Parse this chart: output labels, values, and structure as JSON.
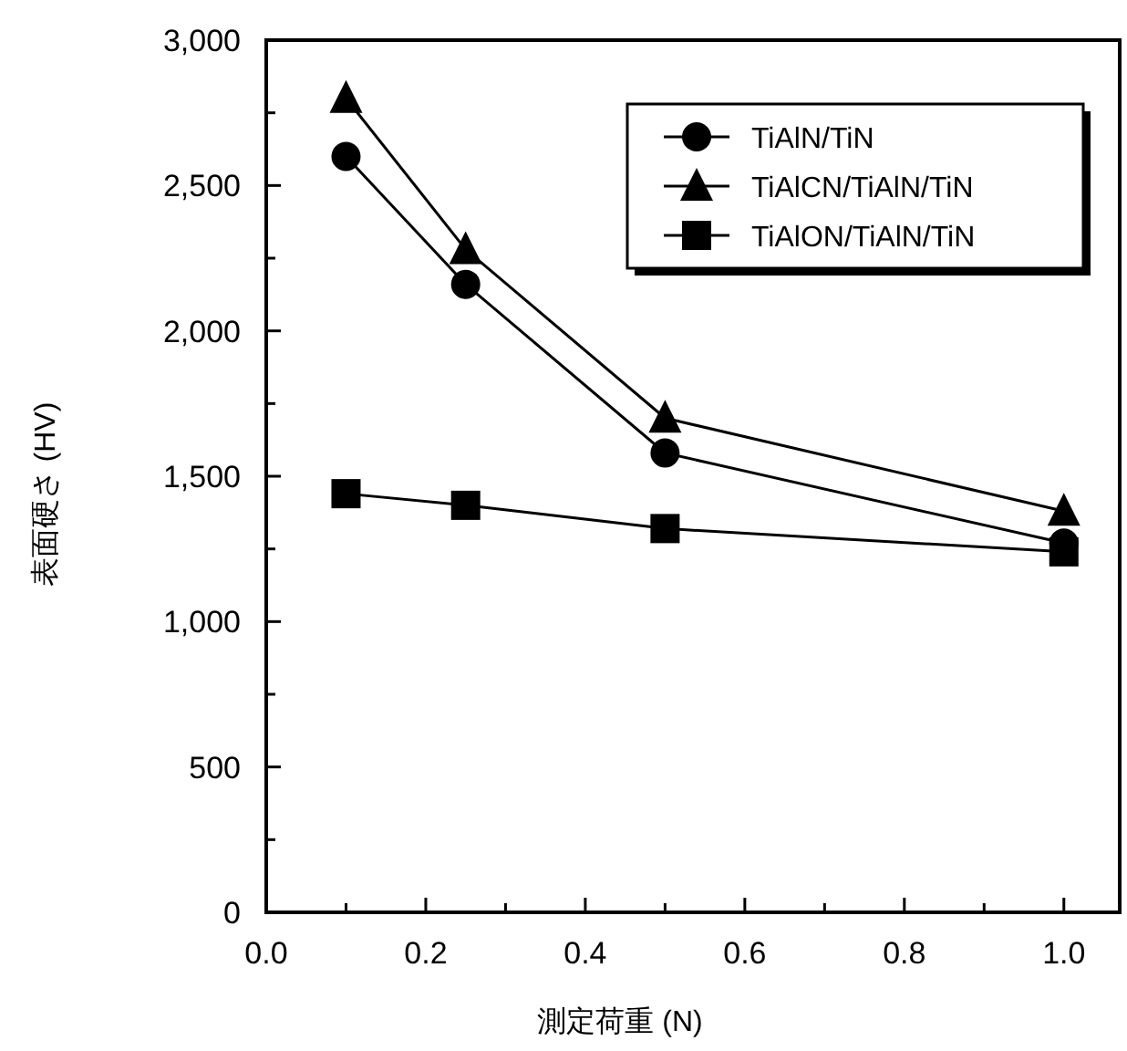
{
  "chart_data": {
    "type": "line",
    "xlabel": "測定荷重 (N)",
    "ylabel": "表面硬さ (HV)",
    "xlim": [
      0,
      1.07
    ],
    "ylim": [
      0,
      3000
    ],
    "xticks": [
      {
        "value": 0,
        "label": "0.0"
      },
      {
        "value": 0.1,
        "label": null
      },
      {
        "value": 0.2,
        "label": "0.2"
      },
      {
        "value": 0.3,
        "label": null
      },
      {
        "value": 0.4,
        "label": "0.4"
      },
      {
        "value": 0.5,
        "label": null
      },
      {
        "value": 0.6,
        "label": "0.6"
      },
      {
        "value": 0.7,
        "label": null
      },
      {
        "value": 0.8,
        "label": "0.8"
      },
      {
        "value": 0.9,
        "label": null
      },
      {
        "value": 1,
        "label": "1.0"
      }
    ],
    "yticks": [
      0,
      {
        "value": 250,
        "label": null
      },
      500,
      {
        "value": 750,
        "label": null
      },
      {
        "value": 1000,
        "label": "1,000"
      },
      {
        "value": 1250,
        "label": null
      },
      {
        "value": 1500,
        "label": "1,500"
      },
      {
        "value": 1750,
        "label": null
      },
      {
        "value": 2000,
        "label": "2,000"
      },
      {
        "value": 2250,
        "label": null
      },
      {
        "value": 2500,
        "label": "2,500"
      },
      {
        "value": 2750,
        "label": null
      },
      {
        "value": 3000,
        "label": "3,000"
      }
    ],
    "x": [
      0.1,
      0.25,
      0.5,
      1.0
    ],
    "legend": "top right",
    "grid": false,
    "line_style": "solid",
    "series": [
      {
        "name": "TiAlN/TiN",
        "color": "#000000",
        "marker": "circle",
        "values": [
          2600,
          2160,
          1580,
          1270
        ]
      },
      {
        "name": "TiAlCN/TiAlN/TiN",
        "color": "#000000",
        "marker": "triangle",
        "values": [
          2800,
          2280,
          1700,
          1380
        ]
      },
      {
        "name": "TiAlON/TiAlN/TiN",
        "color": "#000000",
        "marker": "square",
        "values": [
          1440,
          1400,
          1320,
          1240
        ]
      }
    ]
  }
}
